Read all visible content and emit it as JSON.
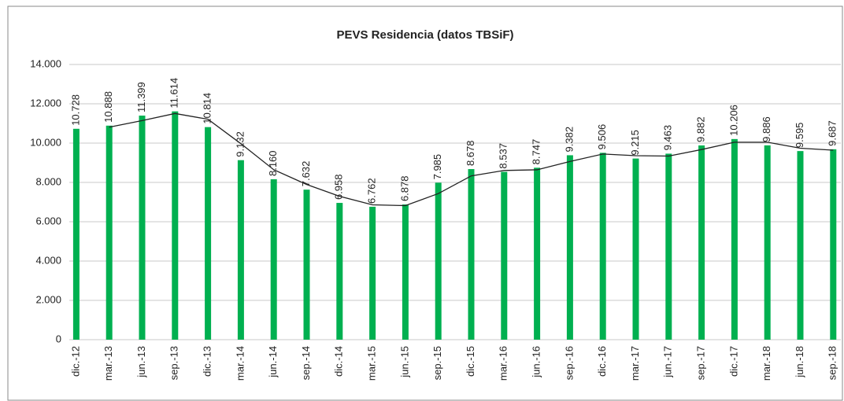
{
  "chart_data": {
    "type": "bar",
    "title": "PEVS Residencia (datos TBSiF)",
    "categories": [
      "dic.-12",
      "mar.-13",
      "jun.-13",
      "sep.-13",
      "dic.-13",
      "mar.-14",
      "jun.-14",
      "sep.-14",
      "dic.-14",
      "mar.-15",
      "jun.-15",
      "sep.-15",
      "dic.-15",
      "mar.-16",
      "jun.-16",
      "sep.-16",
      "dic.-16",
      "mar.-17",
      "jun.-17",
      "sep.-17",
      "dic.-17",
      "mar.-18",
      "jun.-18",
      "sep.-18"
    ],
    "series": [
      {
        "color": "#00b050",
        "values": [
          10728,
          10888,
          11399,
          11614,
          10814,
          9132,
          8160,
          7632,
          6958,
          6762,
          6878,
          7985,
          8678,
          8537,
          8747,
          9382,
          9506,
          9215,
          9463,
          9882,
          10206,
          9886,
          9595,
          9687
        ],
        "value_labels": [
          "10.728",
          "10.888",
          "11.399",
          "11.614",
          "10.814",
          "9.132",
          "8.160",
          "7.632",
          "6.958",
          "6.762",
          "6.878",
          "7.985",
          "8.678",
          "8.537",
          "8.747",
          "9.382",
          "9.506",
          "9.215",
          "9.463",
          "9.882",
          "10.206",
          "9.886",
          "9.595",
          "9.687"
        ]
      },
      {
        "type": "line",
        "color": "#222222",
        "values": [
          null,
          10808,
          11143.5,
          11506.5,
          11214,
          9973,
          8646,
          7896,
          7295,
          6860,
          6820,
          7431.5,
          8331.5,
          8607.5,
          8642,
          9064.5,
          9444,
          9360.5,
          9339,
          9672.5,
          10044,
          10046,
          9740.5,
          9641
        ]
      }
    ],
    "ylim": [
      0,
      14000
    ],
    "yticks": [
      0,
      {
        "value": 2000,
        "label": "2.000"
      },
      {
        "value": 4000,
        "label": "4.000"
      },
      {
        "value": 6000,
        "label": "6.000"
      },
      {
        "value": 8000,
        "label": "8.000"
      },
      {
        "value": 10000,
        "label": "10.000"
      },
      {
        "value": 12000,
        "label": "12.000"
      },
      {
        "value": 14000,
        "label": "14.000"
      }
    ],
    "grid": true
  }
}
